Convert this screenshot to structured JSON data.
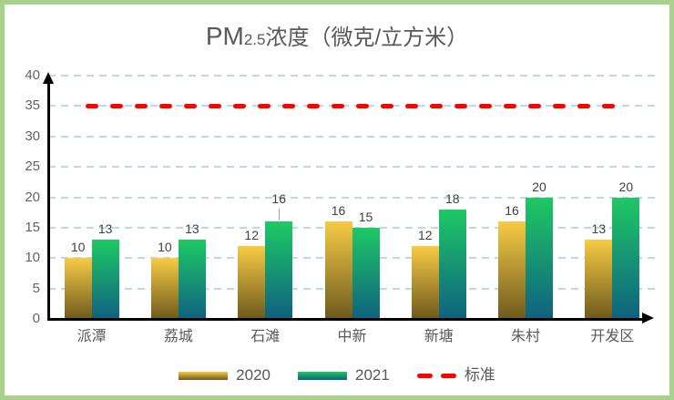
{
  "title": {
    "prefix": "PM",
    "subscript": "2.5",
    "suffix": "浓度（微克/立方米）"
  },
  "chart_data": {
    "type": "bar",
    "title": "PM2.5浓度（微克/立方米）",
    "categories": [
      "派潭",
      "荔城",
      "石滩",
      "中新",
      "新塘",
      "朱村",
      "开发区"
    ],
    "series": [
      {
        "name": "2020",
        "values": [
          10,
          10,
          12,
          16,
          12,
          16,
          13
        ],
        "color_top": "#F7CB45",
        "color_bottom": "#6E5A1D"
      },
      {
        "name": "2021",
        "values": [
          13,
          13,
          16,
          15,
          18,
          20,
          20
        ],
        "color_top": "#1EC964",
        "color_bottom": "#0F6180"
      }
    ],
    "reference_line": {
      "name": "标准",
      "value": 35,
      "color": "#FE0000"
    },
    "xlabel": "",
    "ylabel": "",
    "ylim": [
      0,
      40
    ],
    "ytick_step": 5,
    "grid": true,
    "grid_color": "#BDD7EE",
    "axis_color": "#000000",
    "label_color": "#404040",
    "legend_position": "bottom",
    "raised_label": {
      "series_index": 1,
      "category_index": 2
    }
  },
  "frame": {
    "border_color": "#A9D18E",
    "background": "#FFFFFF"
  }
}
